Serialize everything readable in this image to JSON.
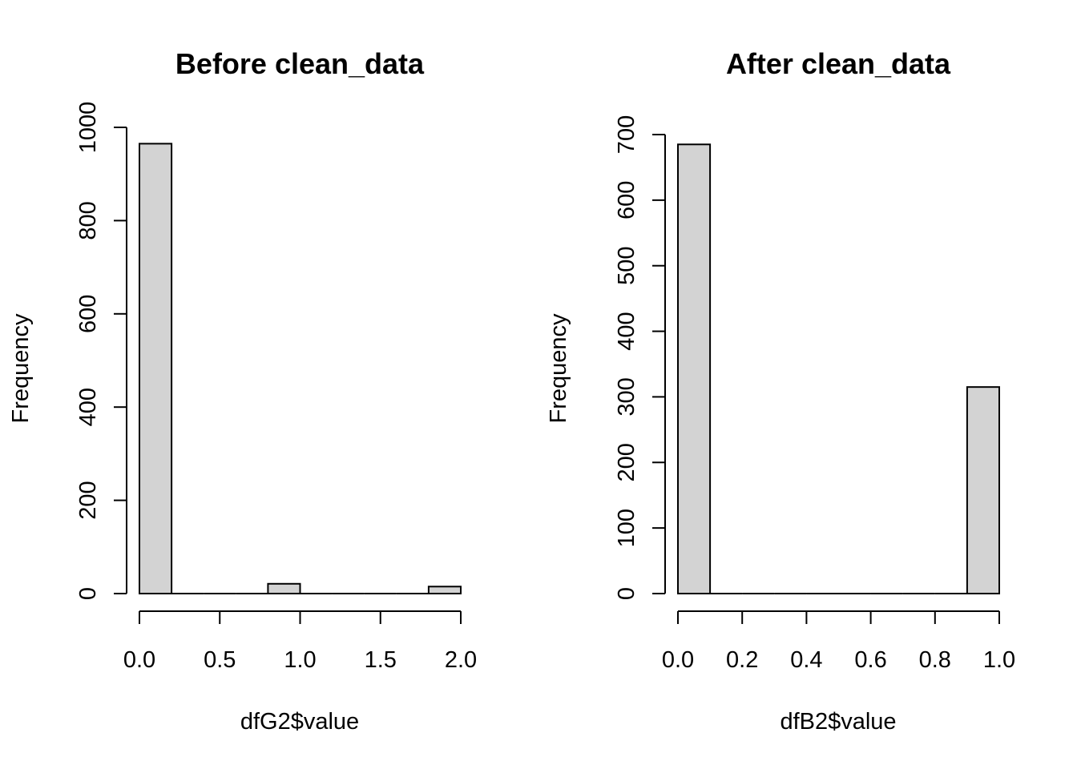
{
  "chart_data": [
    {
      "type": "bar",
      "title": "Before clean_data",
      "xlabel": "dfG2$value",
      "ylabel": "Frequency",
      "bins": [
        [
          0.0,
          0.2
        ],
        [
          0.2,
          0.4
        ],
        [
          0.4,
          0.6
        ],
        [
          0.6,
          0.8
        ],
        [
          0.8,
          1.0
        ],
        [
          1.0,
          1.2
        ],
        [
          1.2,
          1.4
        ],
        [
          1.4,
          1.6
        ],
        [
          1.6,
          1.8
        ],
        [
          1.8,
          2.0
        ]
      ],
      "values": [
        965,
        0,
        0,
        0,
        21,
        0,
        0,
        0,
        0,
        15
      ],
      "xticks": [
        0.0,
        0.5,
        1.0,
        1.5,
        2.0
      ],
      "xtick_labels": [
        "0.0",
        "0.5",
        "1.0",
        "1.5",
        "2.0"
      ],
      "yticks": [
        0,
        200,
        400,
        600,
        800,
        1000
      ],
      "ytick_labels": [
        "0",
        "200",
        "400",
        "600",
        "800",
        "1000"
      ],
      "xlim": [
        0.0,
        2.0
      ],
      "ylim": [
        0,
        1000
      ],
      "grid": false,
      "bar_color": "#d3d3d3"
    },
    {
      "type": "bar",
      "title": "After clean_data",
      "xlabel": "dfB2$value",
      "ylabel": "Frequency",
      "bins": [
        [
          0.0,
          0.1
        ],
        [
          0.1,
          0.2
        ],
        [
          0.2,
          0.3
        ],
        [
          0.3,
          0.4
        ],
        [
          0.4,
          0.5
        ],
        [
          0.5,
          0.6
        ],
        [
          0.6,
          0.7
        ],
        [
          0.7,
          0.8
        ],
        [
          0.8,
          0.9
        ],
        [
          0.9,
          1.0
        ]
      ],
      "values": [
        685,
        0,
        0,
        0,
        0,
        0,
        0,
        0,
        0,
        315
      ],
      "xticks": [
        0.0,
        0.2,
        0.4,
        0.6,
        0.8,
        1.0
      ],
      "xtick_labels": [
        "0.0",
        "0.2",
        "0.4",
        "0.6",
        "0.8",
        "1.0"
      ],
      "yticks": [
        0,
        100,
        200,
        300,
        400,
        500,
        600,
        700
      ],
      "ytick_labels": [
        "0",
        "100",
        "200",
        "300",
        "400",
        "500",
        "600",
        "700"
      ],
      "xlim": [
        0.0,
        1.0
      ],
      "ylim": [
        0,
        700
      ],
      "grid": false,
      "bar_color": "#d3d3d3"
    }
  ]
}
